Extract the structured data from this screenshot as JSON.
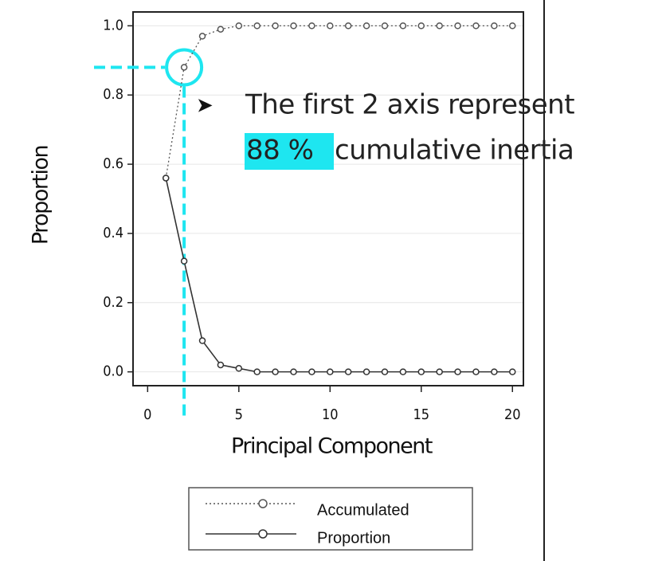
{
  "chart_data": {
    "type": "line",
    "x_label": "Principal Component",
    "y_label": "Proportion",
    "annotations": [
      "The first 2 axis represent",
      "88 %",
      "cumulative inertia"
    ],
    "x": [
      1,
      2,
      3,
      4,
      5,
      6,
      7,
      8,
      9,
      10,
      11,
      12,
      13,
      14,
      15,
      16,
      17,
      18,
      19,
      20
    ],
    "series": [
      {
        "name": "Accumulated",
        "color": "#555555",
        "style": "dotted",
        "values": [
          0.56,
          0.88,
          0.97,
          0.99,
          1.0,
          1.0,
          1.0,
          1.0,
          1.0,
          1.0,
          1.0,
          1.0,
          1.0,
          1.0,
          1.0,
          1.0,
          1.0,
          1.0,
          1.0,
          1.0
        ]
      },
      {
        "name": "Proportion",
        "color": "#333333",
        "style": "solid",
        "values": [
          0.56,
          0.32,
          0.09,
          0.02,
          0.01,
          0,
          0,
          0,
          0,
          0,
          0,
          0,
          0,
          0,
          0,
          0,
          0,
          0,
          0,
          0
        ]
      }
    ],
    "xlim": [
      -0.8,
      20.6
    ],
    "ylim": [
      -0.04,
      1.04
    ],
    "xticks": [
      0,
      5,
      10,
      15,
      20
    ],
    "yticks": [
      {
        "value": 0,
        "label": "0.0"
      },
      0.2,
      0.4,
      0.6,
      0.8,
      {
        "value": 1,
        "label": "1.0"
      }
    ],
    "grid": true
  }
}
